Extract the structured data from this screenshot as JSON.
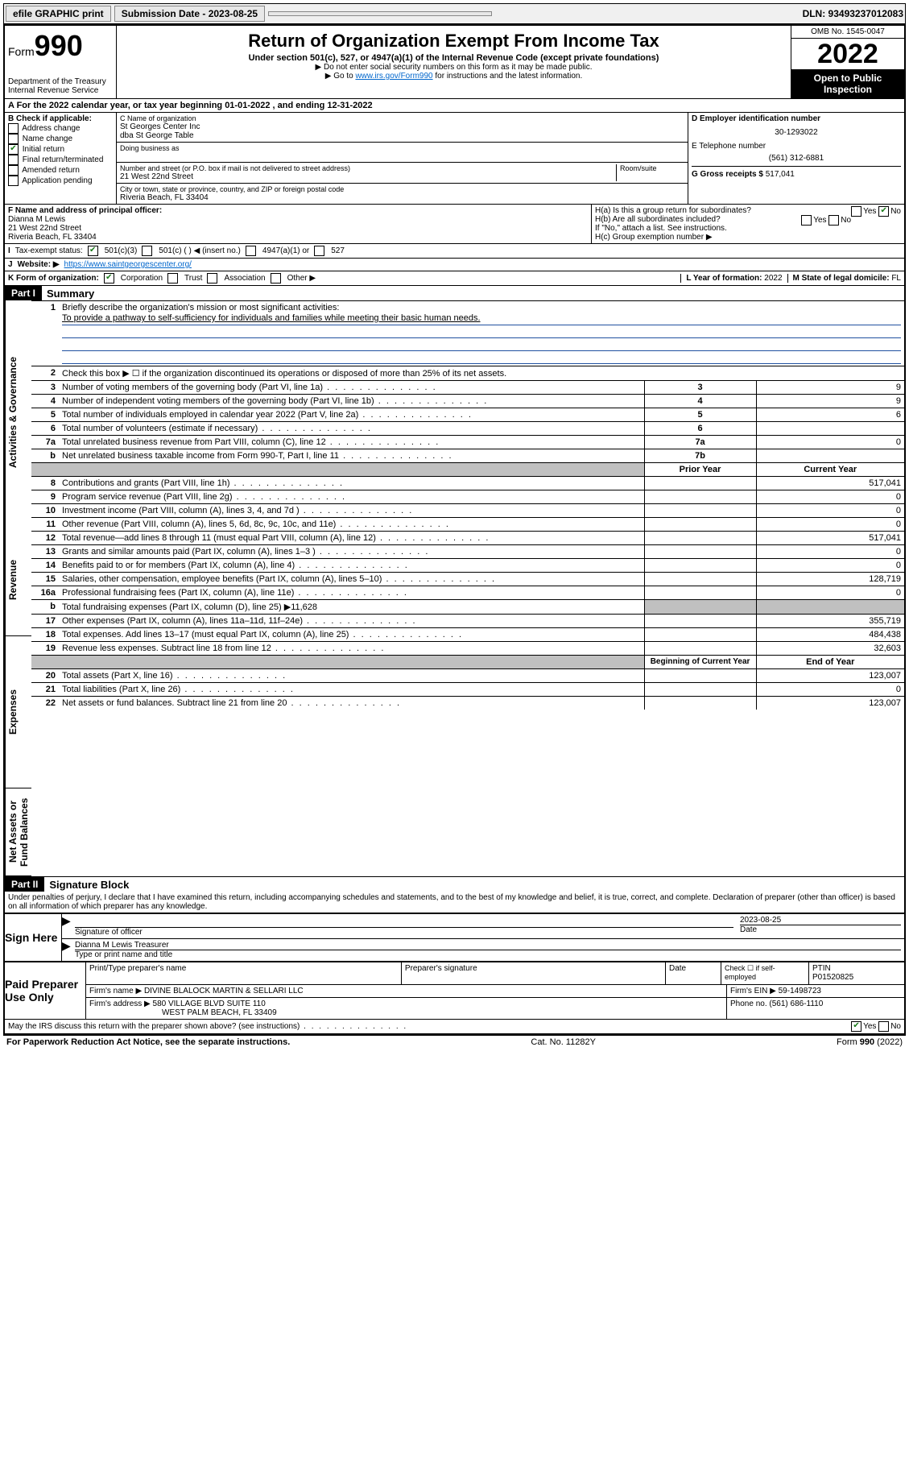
{
  "topbar": {
    "efile": "efile GRAPHIC print",
    "sub_label": "Submission Date - 2023-08-25",
    "dln": "DLN: 93493237012083"
  },
  "header": {
    "form_word": "Form",
    "form_num": "990",
    "dept": "Department of the Treasury",
    "irs": "Internal Revenue Service",
    "title": "Return of Organization Exempt From Income Tax",
    "sub1": "Under section 501(c), 527, or 4947(a)(1) of the Internal Revenue Code (except private foundations)",
    "sub2": "▶ Do not enter social security numbers on this form as it may be made public.",
    "sub3_pre": "▶ Go to ",
    "sub3_link": "www.irs.gov/Form990",
    "sub3_post": " for instructions and the latest information.",
    "omb": "OMB No. 1545-0047",
    "year": "2022",
    "inspect": "Open to Public Inspection"
  },
  "row_a": "A For the 2022 calendar year, or tax year beginning 01-01-2022    , and ending 12-31-2022",
  "col_b": {
    "title": "B Check if applicable:",
    "items": [
      "Address change",
      "Name change",
      "Initial return",
      "Final return/terminated",
      "Amended return",
      "Application pending"
    ],
    "checked_idx": 2
  },
  "col_c": {
    "c_label": "C Name of organization",
    "c_name1": "St Georges Center Inc",
    "c_name2": "dba St George Table",
    "dba_label": "Doing business as",
    "addr_label": "Number and street (or P.O. box if mail is not delivered to street address)",
    "room_label": "Room/suite",
    "addr": "21 West 22nd Street",
    "city_label": "City or town, state or province, country, and ZIP or foreign postal code",
    "city": "Riveria Beach, FL  33404"
  },
  "col_de": {
    "d_label": "D Employer identification number",
    "d_val": "30-1293022",
    "e_label": "E Telephone number",
    "e_val": "(561) 312-6881",
    "g_label": "G Gross receipts $",
    "g_val": "517,041"
  },
  "sec_f": {
    "f_label": "F Name and address of principal officer:",
    "f_name": "Dianna M Lewis",
    "f_addr1": "21 West 22nd Street",
    "f_addr2": "Riveria Beach, FL  33404"
  },
  "sec_h": {
    "ha": "H(a)  Is this a group return for subordinates?",
    "ha_yes": "Yes",
    "ha_no": "No",
    "hb": "H(b)  Are all subordinates included?",
    "hb_note": "If \"No,\" attach a list. See instructions.",
    "hc": "H(c)  Group exemption number ▶"
  },
  "line_i": {
    "label": "Tax-exempt status:",
    "opts": [
      "501(c)(3)",
      "501(c) (  ) ◀ (insert no.)",
      "4947(a)(1) or",
      "527"
    ]
  },
  "line_j": {
    "label": "Website: ▶",
    "val": "https://www.saintgeorgescenter.org/"
  },
  "line_k": {
    "label": "K Form of organization:",
    "opts": [
      "Corporation",
      "Trust",
      "Association",
      "Other ▶"
    ],
    "l_label": "L Year of formation:",
    "l_val": "2022",
    "m_label": "M State of legal domicile:",
    "m_val": "FL"
  },
  "part1": {
    "hdr": "Part I",
    "title": "Summary"
  },
  "mission": {
    "q": "Briefly describe the organization's mission or most significant activities:",
    "text": "To provide a pathway to self-sufficiency for individuals and families while meeting their basic human needs."
  },
  "line2": "Check this box ▶ ☐  if the organization discontinued its operations or disposed of more than 25% of its net assets.",
  "gov_rows": [
    {
      "n": "3",
      "t": "Number of voting members of the governing body (Part VI, line 1a)",
      "box": "3",
      "v": "9"
    },
    {
      "n": "4",
      "t": "Number of independent voting members of the governing body (Part VI, line 1b)",
      "box": "4",
      "v": "9"
    },
    {
      "n": "5",
      "t": "Total number of individuals employed in calendar year 2022 (Part V, line 2a)",
      "box": "5",
      "v": "6"
    },
    {
      "n": "6",
      "t": "Total number of volunteers (estimate if necessary)",
      "box": "6",
      "v": ""
    },
    {
      "n": "7a",
      "t": "Total unrelated business revenue from Part VIII, column (C), line 12",
      "box": "7a",
      "v": "0"
    },
    {
      "n": "b",
      "t": "Net unrelated business taxable income from Form 990-T, Part I, line 11",
      "box": "7b",
      "v": ""
    }
  ],
  "col_hdrs": {
    "prior": "Prior Year",
    "current": "Current Year"
  },
  "rev_rows": [
    {
      "n": "8",
      "t": "Contributions and grants (Part VIII, line 1h)",
      "p": "",
      "c": "517,041"
    },
    {
      "n": "9",
      "t": "Program service revenue (Part VIII, line 2g)",
      "p": "",
      "c": "0"
    },
    {
      "n": "10",
      "t": "Investment income (Part VIII, column (A), lines 3, 4, and 7d )",
      "p": "",
      "c": "0"
    },
    {
      "n": "11",
      "t": "Other revenue (Part VIII, column (A), lines 5, 6d, 8c, 9c, 10c, and 11e)",
      "p": "",
      "c": "0"
    },
    {
      "n": "12",
      "t": "Total revenue—add lines 8 through 11 (must equal Part VIII, column (A), line 12)",
      "p": "",
      "c": "517,041"
    }
  ],
  "exp_rows": [
    {
      "n": "13",
      "t": "Grants and similar amounts paid (Part IX, column (A), lines 1–3 )",
      "p": "",
      "c": "0"
    },
    {
      "n": "14",
      "t": "Benefits paid to or for members (Part IX, column (A), line 4)",
      "p": "",
      "c": "0"
    },
    {
      "n": "15",
      "t": "Salaries, other compensation, employee benefits (Part IX, column (A), lines 5–10)",
      "p": "",
      "c": "128,719"
    },
    {
      "n": "16a",
      "t": "Professional fundraising fees (Part IX, column (A), line 11e)",
      "p": "",
      "c": "0"
    },
    {
      "n": "b",
      "t": "Total fundraising expenses (Part IX, column (D), line 25) ▶11,628",
      "shade": true
    },
    {
      "n": "17",
      "t": "Other expenses (Part IX, column (A), lines 11a–11d, 11f–24e)",
      "p": "",
      "c": "355,719"
    },
    {
      "n": "18",
      "t": "Total expenses. Add lines 13–17 (must equal Part IX, column (A), line 25)",
      "p": "",
      "c": "484,438"
    },
    {
      "n": "19",
      "t": "Revenue less expenses. Subtract line 18 from line 12",
      "p": "",
      "c": "32,603"
    }
  ],
  "net_hdrs": {
    "begin": "Beginning of Current Year",
    "end": "End of Year"
  },
  "net_rows": [
    {
      "n": "20",
      "t": "Total assets (Part X, line 16)",
      "p": "",
      "c": "123,007"
    },
    {
      "n": "21",
      "t": "Total liabilities (Part X, line 26)",
      "p": "",
      "c": "0"
    },
    {
      "n": "22",
      "t": "Net assets or fund balances. Subtract line 21 from line 20",
      "p": "",
      "c": "123,007"
    }
  ],
  "side_labels": {
    "gov": "Activities & Governance",
    "rev": "Revenue",
    "exp": "Expenses",
    "net": "Net Assets or Fund Balances"
  },
  "part2": {
    "hdr": "Part II",
    "title": "Signature Block"
  },
  "sig_decl": "Under penalties of perjury, I declare that I have examined this return, including accompanying schedules and statements, and to the best of my knowledge and belief, it is true, correct, and complete. Declaration of preparer (other than officer) is based on all information of which preparer has any knowledge.",
  "sign": {
    "here": "Sign Here",
    "sig_label": "Signature of officer",
    "date": "2023-08-25",
    "date_label": "Date",
    "name": "Dianna M Lewis Treasurer",
    "name_label": "Type or print name and title"
  },
  "paid": {
    "title": "Paid Preparer Use Only",
    "c1": "Print/Type preparer's name",
    "c2": "Preparer's signature",
    "c3": "Date",
    "c4a": "Check ☐ if self-employed",
    "c4b": "PTIN",
    "ptin": "P01520825",
    "firm_label": "Firm's name    ▶",
    "firm": "DIVINE BLALOCK MARTIN & SELLARI LLC",
    "ein_label": "Firm's EIN ▶",
    "ein": "59-1498723",
    "addr_label": "Firm's address ▶",
    "addr1": "580 VILLAGE BLVD SUITE 110",
    "addr2": "WEST PALM BEACH, FL  33409",
    "phone_label": "Phone no.",
    "phone": "(561) 686-1110"
  },
  "discuss": {
    "q": "May the IRS discuss this return with the preparer shown above? (see instructions)",
    "yes": "Yes",
    "no": "No"
  },
  "footer": {
    "left": "For Paperwork Reduction Act Notice, see the separate instructions.",
    "mid": "Cat. No. 11282Y",
    "right": "Form 990 (2022)"
  }
}
